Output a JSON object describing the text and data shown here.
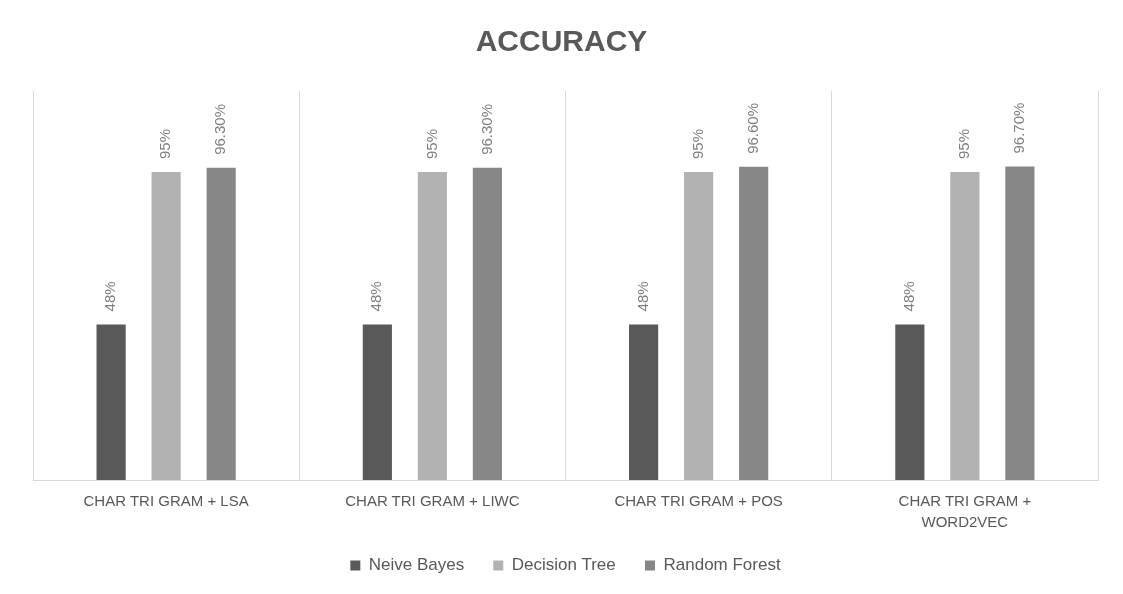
{
  "chart_data": {
    "type": "bar",
    "title": "ACCURACY",
    "categories": [
      "CHAR TRI GRAM + LSA",
      "CHAR TRI GRAM + LIWC",
      "CHAR TRI GRAM + POS",
      "CHAR TRI GRAM + WORD2VEC"
    ],
    "series": [
      {
        "name": "Neive Bayes",
        "color": "#595959",
        "values": [
          48,
          48,
          48,
          48
        ],
        "value_labels": [
          "48%",
          "48%",
          "48%",
          "48%"
        ]
      },
      {
        "name": "Decision Tree",
        "color": "#b2b2b2",
        "values": [
          95,
          95,
          95,
          95
        ],
        "value_labels": [
          "95%",
          "95%",
          "95%",
          "95%"
        ]
      },
      {
        "name": "Random Forest",
        "color": "#878787",
        "values": [
          96.3,
          96.3,
          96.6,
          96.7
        ],
        "value_labels": [
          "96.30%",
          "96.30%",
          "96.60%",
          "96.70%"
        ]
      }
    ],
    "ylim": [
      0,
      120
    ],
    "tick_labels": "x",
    "grid": "x",
    "legend": "bottom"
  }
}
